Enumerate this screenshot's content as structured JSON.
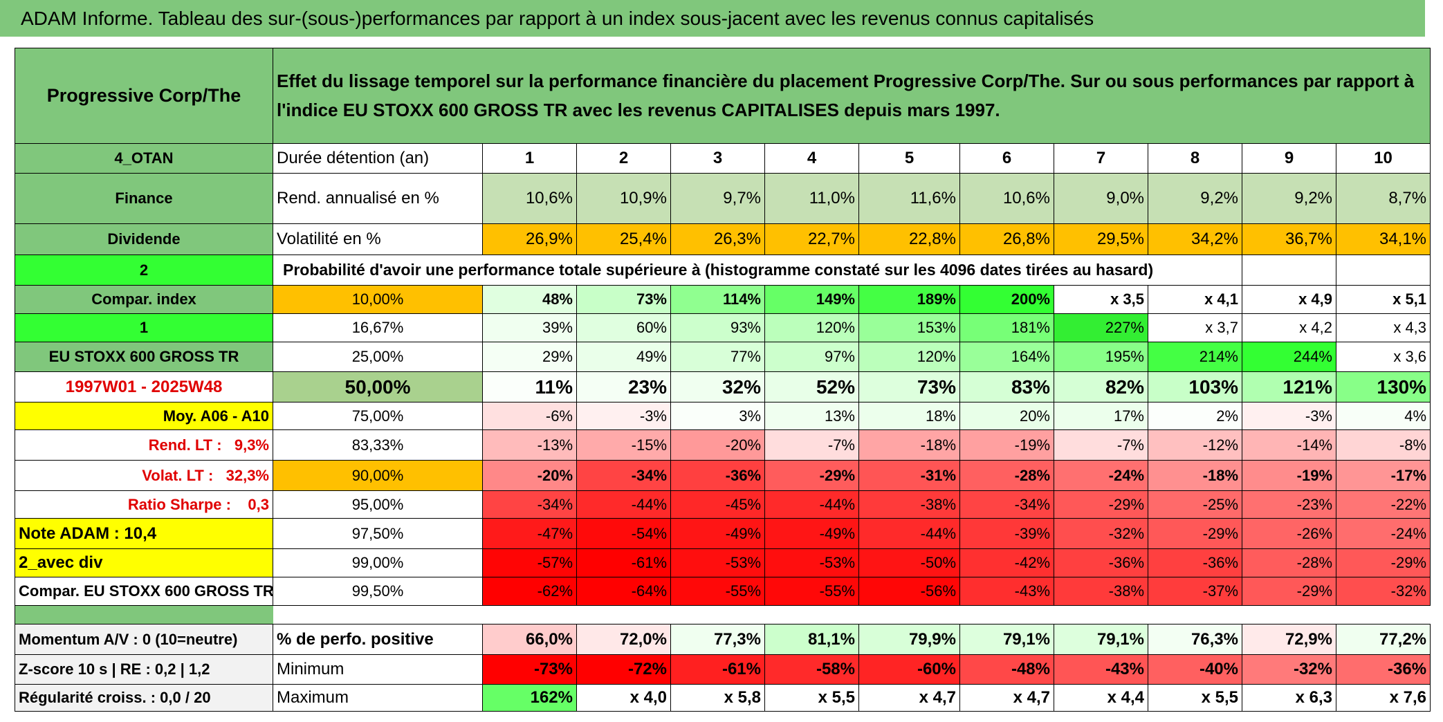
{
  "header": {
    "title": "ADAM Informe. Tableau des sur-(sous-)performances par rapport à un index sous-jacent avec les revenus connus capitalisés"
  },
  "table": {
    "rows": [
      [
        "Progressive Corp/The",
        "Effet du lissage temporel sur la performance financière du placement Progressive Corp/The. Sur ou sous performances par rapport à l'indice EU STOXX 600 GROSS TR avec les revenus CAPITALISES depuis mars 1997."
      ],
      [
        "4_OTAN",
        "Durée détention (an)",
        "1",
        "2",
        "3",
        "4",
        "5",
        "6",
        "7",
        "8",
        "9",
        "10"
      ],
      [
        "Finance",
        "Rend. annualisé en %",
        "10,6%",
        "10,9%",
        "9,7%",
        "11,0%",
        "11,6%",
        "10,6%",
        "9,0%",
        "9,2%",
        "9,2%",
        "8,7%"
      ],
      [
        "Dividende",
        "Volatilité en %",
        "26,9%",
        "25,4%",
        "26,3%",
        "22,7%",
        "22,8%",
        "26,8%",
        "29,5%",
        "34,2%",
        "36,7%",
        "34,1%"
      ],
      [
        "2",
        "Probabilité d'avoir une performance totale supérieure à (histogramme constaté sur les 4096 dates tirées au hasard)"
      ],
      [
        "Compar. index",
        "10,00%",
        "48%",
        "73%",
        "114%",
        "149%",
        "189%",
        "200%",
        "x 3,5",
        "x 4,1",
        "x 4,9",
        "x 5,1"
      ],
      [
        "1",
        "16,67%",
        "39%",
        "60%",
        "93%",
        "120%",
        "153%",
        "181%",
        "227%",
        "x 3,7",
        "x 4,2",
        "x 4,3"
      ],
      [
        "EU STOXX 600 GROSS TR",
        "25,00%",
        "29%",
        "49%",
        "77%",
        "97%",
        "120%",
        "164%",
        "195%",
        "214%",
        "244%",
        "x 3,6"
      ],
      [
        "1997W01 - 2025W48",
        "50,00%",
        "11%",
        "23%",
        "32%",
        "52%",
        "73%",
        "83%",
        "82%",
        "103%",
        "121%",
        "130%"
      ],
      [
        "Moy. A06 - A10",
        "75,00%",
        "-6%",
        "-3%",
        "3%",
        "13%",
        "18%",
        "20%",
        "17%",
        "2%",
        "-3%",
        "4%"
      ],
      [
        "Rend. LT :   9,3%",
        "83,33%",
        "-13%",
        "-15%",
        "-20%",
        "-7%",
        "-18%",
        "-19%",
        "-7%",
        "-12%",
        "-14%",
        "-8%"
      ],
      [
        "Volat. LT :   32,3%",
        "90,00%",
        "-20%",
        "-34%",
        "-36%",
        "-29%",
        "-31%",
        "-28%",
        "-24%",
        "-18%",
        "-19%",
        "-17%"
      ],
      [
        "Ratio Sharpe :    0,3",
        "95,00%",
        "-34%",
        "-44%",
        "-45%",
        "-44%",
        "-38%",
        "-34%",
        "-29%",
        "-25%",
        "-23%",
        "-22%"
      ],
      [
        "Note ADAM : 10,4",
        "97,50%",
        "-47%",
        "-54%",
        "-49%",
        "-49%",
        "-44%",
        "-39%",
        "-32%",
        "-29%",
        "-26%",
        "-24%"
      ],
      [
        "2_avec div",
        "99,00%",
        "-57%",
        "-61%",
        "-53%",
        "-53%",
        "-50%",
        "-42%",
        "-36%",
        "-36%",
        "-28%",
        "-29%"
      ],
      [
        "Compar. EU STOXX 600 GROSS TR",
        "99,50%",
        "-62%",
        "-64%",
        "-55%",
        "-55%",
        "-56%",
        "-43%",
        "-38%",
        "-37%",
        "-29%",
        "-32%"
      ],
      [
        "Momentum A/V : 0 (10=neutre)",
        "% de perfo. positive",
        "66,0%",
        "72,0%",
        "77,3%",
        "81,1%",
        "79,9%",
        "79,1%",
        "79,1%",
        "76,3%",
        "72,9%",
        "77,2%"
      ],
      [
        "Z-score 10 s | RE : 0,2 | 1,2",
        "Minimum",
        "-73%",
        "-72%",
        "-61%",
        "-58%",
        "-60%",
        "-48%",
        "-43%",
        "-40%",
        "-32%",
        "-36%"
      ],
      [
        "Régularité croiss. : 0,0 / 20",
        "Maximum",
        "162%",
        "x 4,0",
        "x 5,8",
        "x 5,5",
        "x 4,7",
        "x 4,7",
        "x 4,4",
        "x 5,5",
        "x 6,3",
        "x 7,6"
      ]
    ]
  }
}
